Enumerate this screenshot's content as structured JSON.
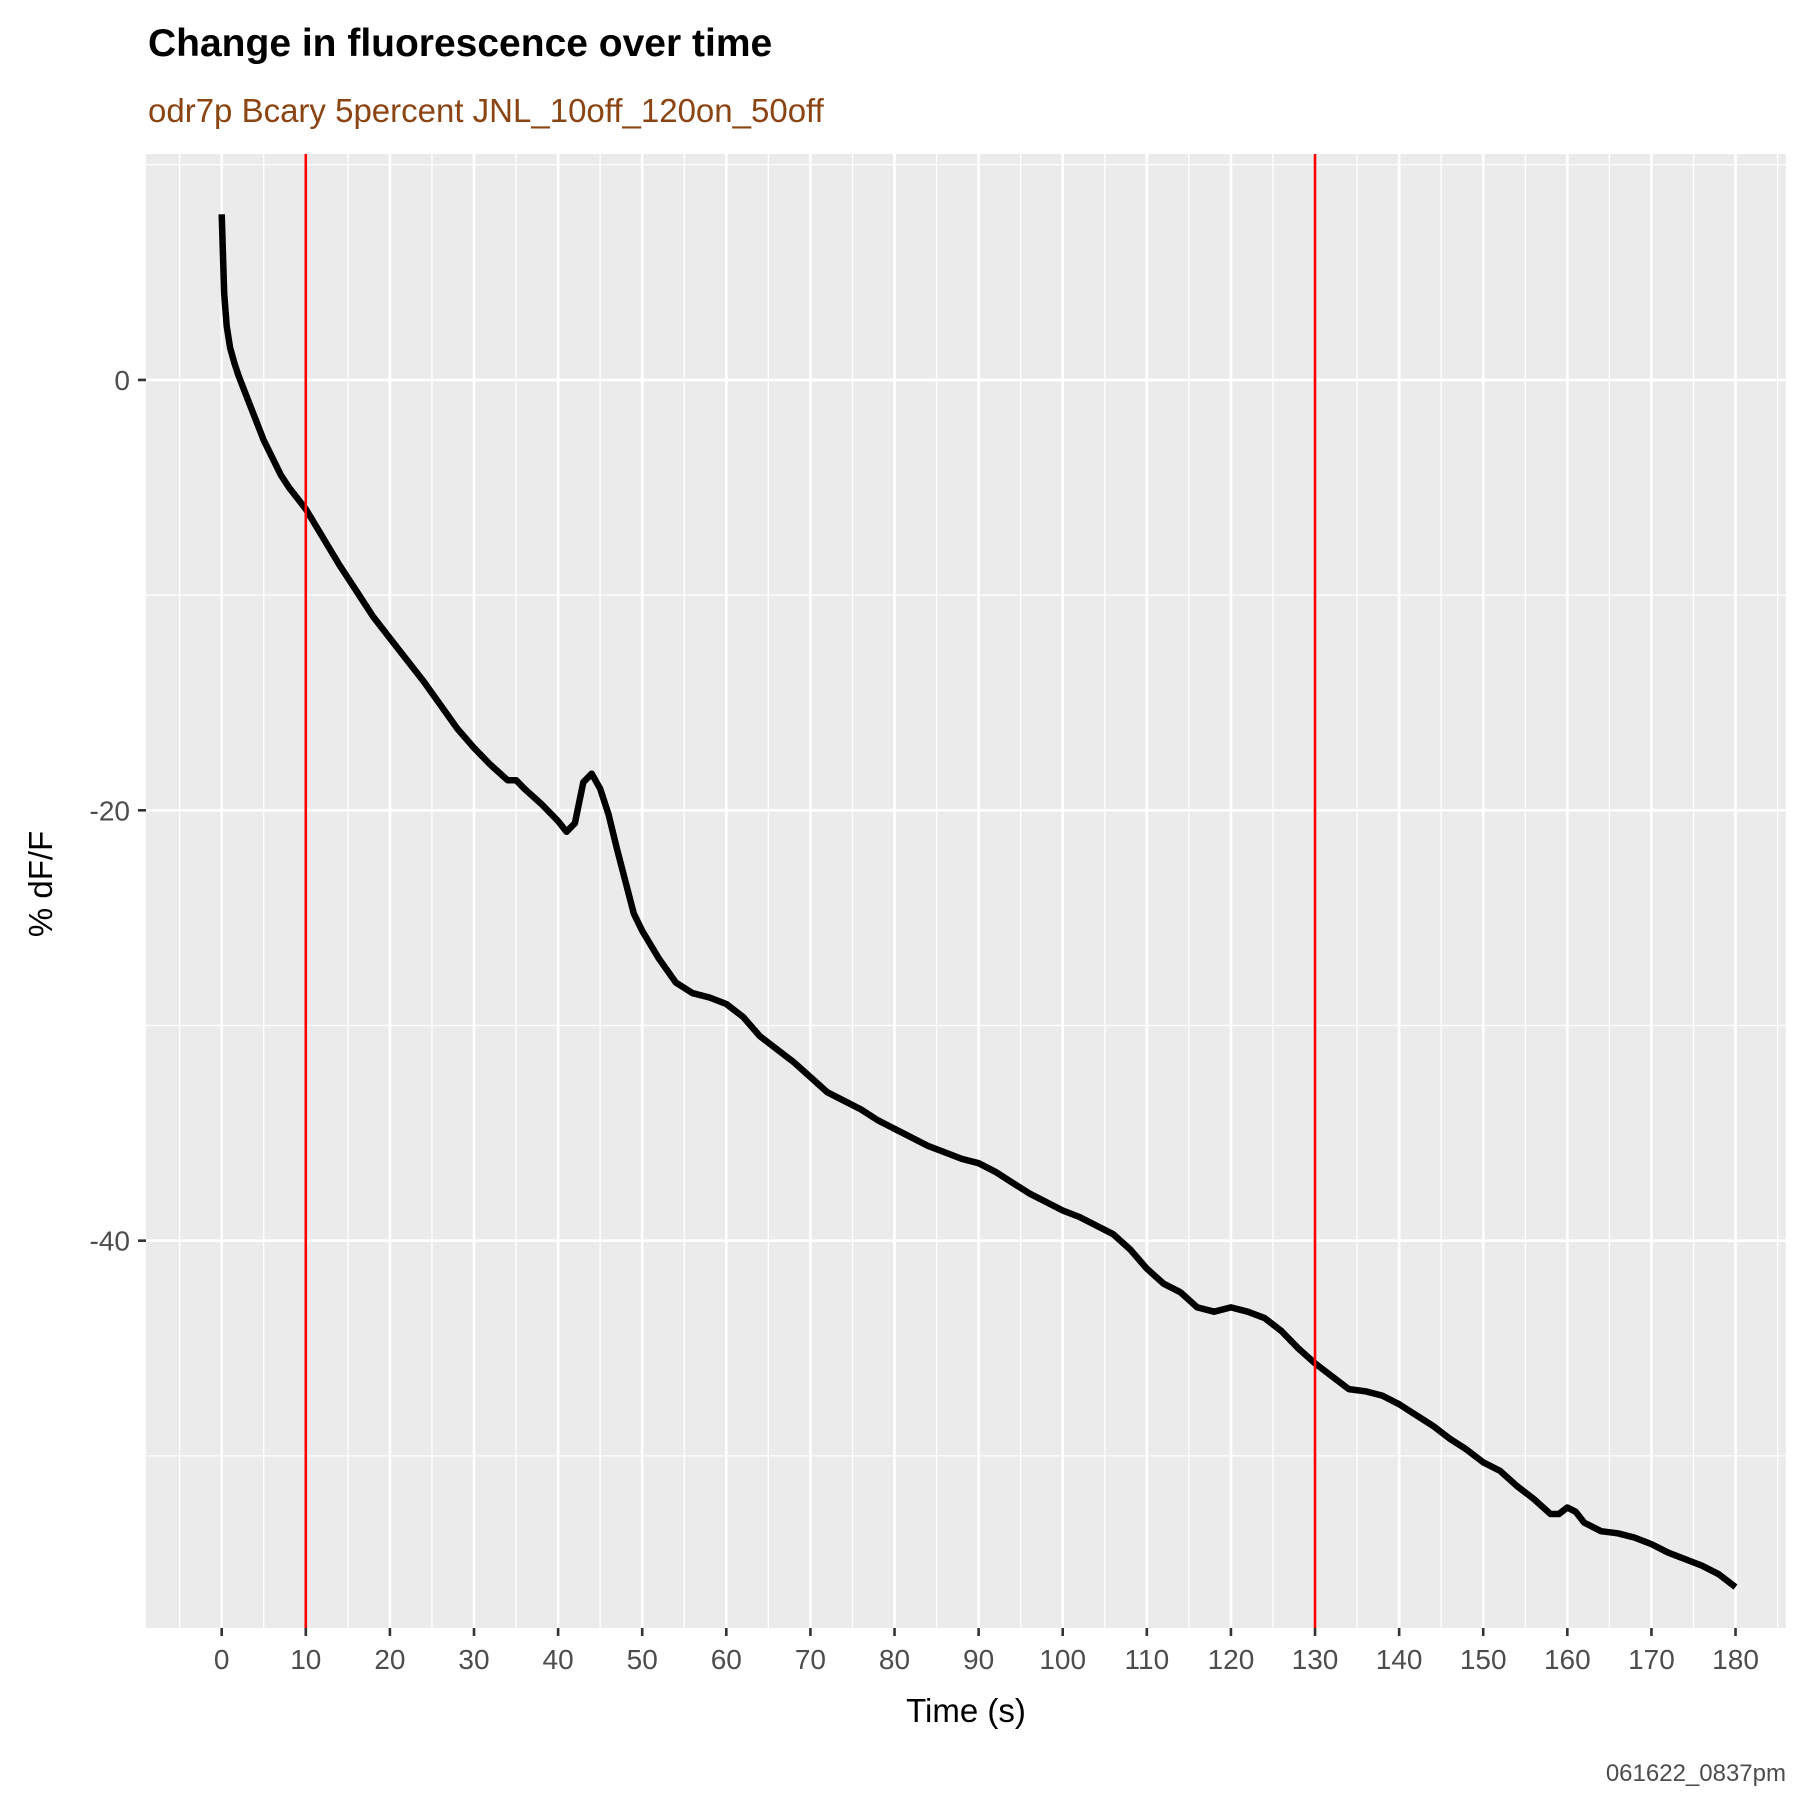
{
  "chart_data": {
    "type": "line",
    "title": "Change in fluorescence over time",
    "subtitle": "odr7p Bcary 5percent JNL_10off_120on_50off",
    "caption": "061622_0837pm",
    "xlabel": "Time (s)",
    "ylabel": "% dF/F",
    "xlim": [
      -9,
      186
    ],
    "ylim": [
      -58,
      10.5
    ],
    "x_ticks": [
      0,
      10,
      20,
      30,
      40,
      50,
      60,
      70,
      80,
      90,
      100,
      110,
      120,
      130,
      140,
      150,
      160,
      170,
      180
    ],
    "y_ticks": [
      0,
      -20,
      -40
    ],
    "vlines": [
      10,
      130
    ],
    "grid": true,
    "colors": {
      "line": "#000000",
      "vline": "#ff0000",
      "panel": "#ebebeb",
      "grid": "#ffffff",
      "subtitle": "#8b4513"
    },
    "series": [
      {
        "x": [
          0,
          0.3,
          0.6,
          1,
          1.5,
          2,
          3,
          4,
          5,
          6,
          7,
          8,
          9,
          10,
          12,
          14,
          16,
          18,
          20,
          22,
          24,
          26,
          28,
          30,
          32,
          34,
          35,
          36,
          38,
          40,
          41,
          42,
          43,
          44,
          45,
          46,
          47,
          48,
          49,
          50,
          52,
          54,
          56,
          58,
          60,
          62,
          64,
          66,
          68,
          70,
          72,
          74,
          76,
          78,
          80,
          82,
          84,
          86,
          88,
          90,
          92,
          94,
          96,
          98,
          100,
          102,
          104,
          106,
          108,
          110,
          112,
          114,
          116,
          118,
          120,
          122,
          124,
          126,
          128,
          130,
          132,
          134,
          136,
          138,
          140,
          142,
          144,
          146,
          148,
          150,
          152,
          154,
          156,
          158,
          159,
          160,
          161,
          162,
          164,
          166,
          168,
          170,
          172,
          174,
          176,
          178,
          180
        ],
        "y": [
          7.7,
          4,
          2.5,
          1.5,
          0.8,
          0.2,
          -0.8,
          -1.8,
          -2.8,
          -3.6,
          -4.4,
          -5.0,
          -5.5,
          -6.0,
          -7.3,
          -8.6,
          -9.8,
          -11.0,
          -12.0,
          -13.0,
          -14.0,
          -15.1,
          -16.2,
          -17.1,
          -17.9,
          -18.6,
          -18.6,
          -19.0,
          -19.7,
          -20.5,
          -21.0,
          -20.6,
          -18.7,
          -18.3,
          -19.0,
          -20.2,
          -21.8,
          -23.3,
          -24.8,
          -25.6,
          -26.9,
          -28.0,
          -28.5,
          -28.7,
          -29.0,
          -29.6,
          -30.5,
          -31.1,
          -31.7,
          -32.4,
          -33.1,
          -33.5,
          -33.9,
          -34.4,
          -34.8,
          -35.2,
          -35.6,
          -35.9,
          -36.2,
          -36.4,
          -36.8,
          -37.3,
          -37.8,
          -38.2,
          -38.6,
          -38.9,
          -39.3,
          -39.7,
          -40.4,
          -41.3,
          -42.0,
          -42.4,
          -43.1,
          -43.3,
          -43.1,
          -43.3,
          -43.6,
          -44.2,
          -45.0,
          -45.7,
          -46.3,
          -46.9,
          -47.0,
          -47.2,
          -47.6,
          -48.1,
          -48.6,
          -49.2,
          -49.7,
          -50.3,
          -50.7,
          -51.4,
          -52.0,
          -52.7,
          -52.7,
          -52.4,
          -52.6,
          -53.1,
          -53.5,
          -53.6,
          -53.8,
          -54.1,
          -54.5,
          -54.8,
          -55.1,
          -55.5,
          -56.1
        ]
      }
    ]
  }
}
